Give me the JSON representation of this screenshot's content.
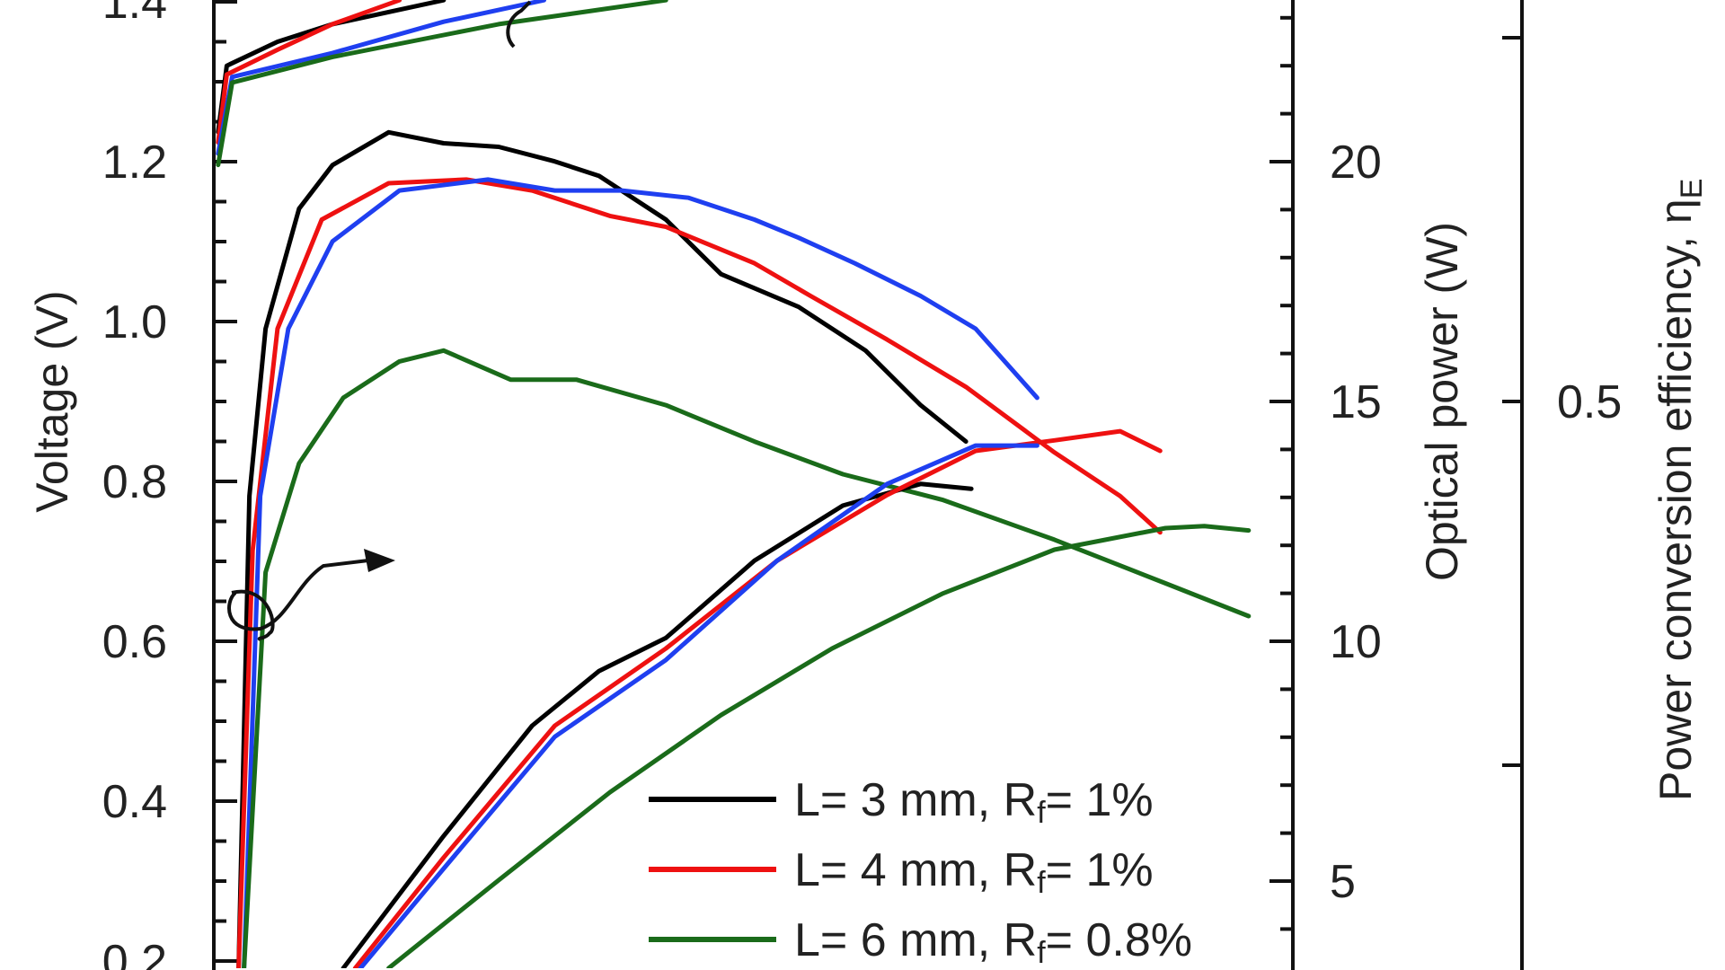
{
  "chart_data": {
    "type": "line",
    "title": "",
    "xlabel": "",
    "xlim": [
      0,
      100
    ],
    "grid": false,
    "legend_placement": "bottom-right",
    "axes": {
      "left": {
        "label": "Voltage (V)",
        "ticks": [
          "1.4",
          "1.2",
          "1.0",
          "0.8",
          "0.6",
          "0.4",
          "0.2"
        ],
        "tick_values": [
          1.4,
          1.2,
          1.0,
          0.8,
          0.6,
          0.4,
          0.2
        ],
        "range": [
          0.2,
          1.4
        ]
      },
      "right": {
        "label": "Optical power (W)",
        "ticks": [
          "20",
          "15",
          "10",
          "5"
        ],
        "tick_values": [
          20,
          15,
          10,
          5
        ],
        "range": [
          3,
          23
        ]
      },
      "far_right": {
        "label": "Power conversion efficiency, η",
        "label_sub": "E",
        "ticks": [
          "0.5"
        ],
        "tick_values": [
          0.5
        ],
        "major_tick_values": [
          0.6,
          0.5,
          0.4
        ]
      }
    },
    "legend": [
      {
        "pre": "L= 3 mm, R",
        "sub": "f",
        "post": "= 1%",
        "color": "#000000"
      },
      {
        "pre": "L= 4 mm, R",
        "sub": "f",
        "post": "= 1%",
        "color": "#ee1111"
      },
      {
        "pre": "L= 6 mm, R",
        "sub": "f",
        "post": "= 0.8%",
        "color": "#1a6b1a"
      }
    ],
    "series": [
      {
        "group": "voltage",
        "axis": "left",
        "color": "#000000",
        "points": [
          [
            0.4,
            1.237
          ],
          [
            1.2,
            1.32
          ],
          [
            5.9,
            1.35
          ],
          [
            11,
            1.372
          ],
          [
            21.3,
            1.402
          ]
        ]
      },
      {
        "group": "voltage",
        "axis": "left",
        "color": "#ee1111",
        "points": [
          [
            0.4,
            1.224
          ],
          [
            1.2,
            1.309
          ],
          [
            5.9,
            1.34
          ],
          [
            11,
            1.372
          ],
          [
            17.2,
            1.402
          ]
        ]
      },
      {
        "group": "voltage",
        "axis": "left",
        "color": "#1f3ff0",
        "points": [
          [
            0.4,
            1.21
          ],
          [
            1.7,
            1.306
          ],
          [
            11,
            1.336
          ],
          [
            21.3,
            1.375
          ],
          [
            30.6,
            1.402
          ]
        ]
      },
      {
        "group": "voltage",
        "axis": "left",
        "color": "#1a6b1a",
        "points": [
          [
            0.4,
            1.196
          ],
          [
            1.7,
            1.299
          ],
          [
            11,
            1.331
          ],
          [
            26.4,
            1.372
          ],
          [
            41.9,
            1.402
          ]
        ]
      },
      {
        "group": "efficiency",
        "axis": "far_right",
        "color": "#000000",
        "points": [
          [
            2.3,
            0.344
          ],
          [
            3.3,
            0.474
          ],
          [
            4.8,
            0.52
          ],
          [
            7.9,
            0.553
          ],
          [
            11,
            0.565
          ],
          [
            16.2,
            0.574
          ],
          [
            21.3,
            0.571
          ],
          [
            26.4,
            0.57
          ],
          [
            31.6,
            0.566
          ],
          [
            35.7,
            0.562
          ],
          [
            41.9,
            0.55
          ],
          [
            47,
            0.535
          ],
          [
            54.2,
            0.526
          ],
          [
            60.4,
            0.514
          ],
          [
            65.5,
            0.499
          ],
          [
            69.7,
            0.489
          ]
        ]
      },
      {
        "group": "efficiency",
        "axis": "far_right",
        "color": "#ee1111",
        "points": [
          [
            2.3,
            0.344
          ],
          [
            3.6,
            0.459
          ],
          [
            5.9,
            0.52
          ],
          [
            10,
            0.55
          ],
          [
            16.2,
            0.56
          ],
          [
            23.4,
            0.561
          ],
          [
            29.5,
            0.558
          ],
          [
            36.7,
            0.551
          ],
          [
            41.9,
            0.548
          ],
          [
            50.1,
            0.538
          ],
          [
            55.3,
            0.529
          ],
          [
            62.4,
            0.517
          ],
          [
            69.7,
            0.504
          ],
          [
            77.9,
            0.486
          ],
          [
            84,
            0.474
          ],
          [
            87.7,
            0.464
          ]
        ]
      },
      {
        "group": "efficiency",
        "axis": "far_right",
        "color": "#1f3ff0",
        "points": [
          [
            2.8,
            0.344
          ],
          [
            4.3,
            0.474
          ],
          [
            6.9,
            0.52
          ],
          [
            11,
            0.544
          ],
          [
            17.2,
            0.558
          ],
          [
            25.4,
            0.561
          ],
          [
            31.6,
            0.558
          ],
          [
            37.8,
            0.558
          ],
          [
            44,
            0.556
          ],
          [
            50.1,
            0.55
          ],
          [
            54.2,
            0.545
          ],
          [
            59.4,
            0.538
          ],
          [
            65.5,
            0.529
          ],
          [
            70.6,
            0.52
          ],
          [
            76.3,
            0.501
          ]
        ]
      },
      {
        "group": "efficiency",
        "axis": "far_right",
        "color": "#1a6b1a",
        "points": [
          [
            2.8,
            0.344
          ],
          [
            4.8,
            0.453
          ],
          [
            7.9,
            0.483
          ],
          [
            12,
            0.501
          ],
          [
            17.2,
            0.511
          ],
          [
            21.3,
            0.514
          ],
          [
            27.5,
            0.506
          ],
          [
            33.6,
            0.506
          ],
          [
            41.9,
            0.499
          ],
          [
            50.1,
            0.489
          ],
          [
            58.3,
            0.48
          ],
          [
            67.5,
            0.473
          ],
          [
            77.9,
            0.462
          ],
          [
            88.2,
            0.45
          ],
          [
            95.9,
            0.441
          ]
        ]
      },
      {
        "group": "optical_power",
        "axis": "right",
        "color": "#000000",
        "points": [
          [
            12,
            3.15
          ],
          [
            21.3,
            5.94
          ],
          [
            29.5,
            8.24
          ],
          [
            35.7,
            9.38
          ],
          [
            41.9,
            10.07
          ],
          [
            50.1,
            11.68
          ],
          [
            58.3,
            12.83
          ],
          [
            65.5,
            13.28
          ],
          [
            70.2,
            13.18
          ]
        ]
      },
      {
        "group": "optical_power",
        "axis": "right",
        "color": "#ee1111",
        "points": [
          [
            13.1,
            3.15
          ],
          [
            21.3,
            5.49
          ],
          [
            31.6,
            8.24
          ],
          [
            41.9,
            9.85
          ],
          [
            52.2,
            11.68
          ],
          [
            62.4,
            13.05
          ],
          [
            70.6,
            13.97
          ],
          [
            77.9,
            14.19
          ],
          [
            84,
            14.38
          ],
          [
            87.7,
            13.97
          ]
        ]
      },
      {
        "group": "optical_power",
        "axis": "right",
        "color": "#1f3ff0",
        "points": [
          [
            13.6,
            3.15
          ],
          [
            21.3,
            5.26
          ],
          [
            31.6,
            8.01
          ],
          [
            41.9,
            9.61
          ],
          [
            52.2,
            11.68
          ],
          [
            62.4,
            13.28
          ],
          [
            70.6,
            14.08
          ],
          [
            76.3,
            14.08
          ]
        ]
      },
      {
        "group": "optical_power",
        "axis": "right",
        "color": "#1a6b1a",
        "points": [
          [
            16.2,
            3.15
          ],
          [
            26.4,
            5.02
          ],
          [
            36.7,
            6.85
          ],
          [
            47,
            8.46
          ],
          [
            57.3,
            9.85
          ],
          [
            67.5,
            10.99
          ],
          [
            77.9,
            11.91
          ],
          [
            88.2,
            12.36
          ],
          [
            91.8,
            12.4
          ],
          [
            95.9,
            12.31
          ]
        ]
      }
    ]
  }
}
